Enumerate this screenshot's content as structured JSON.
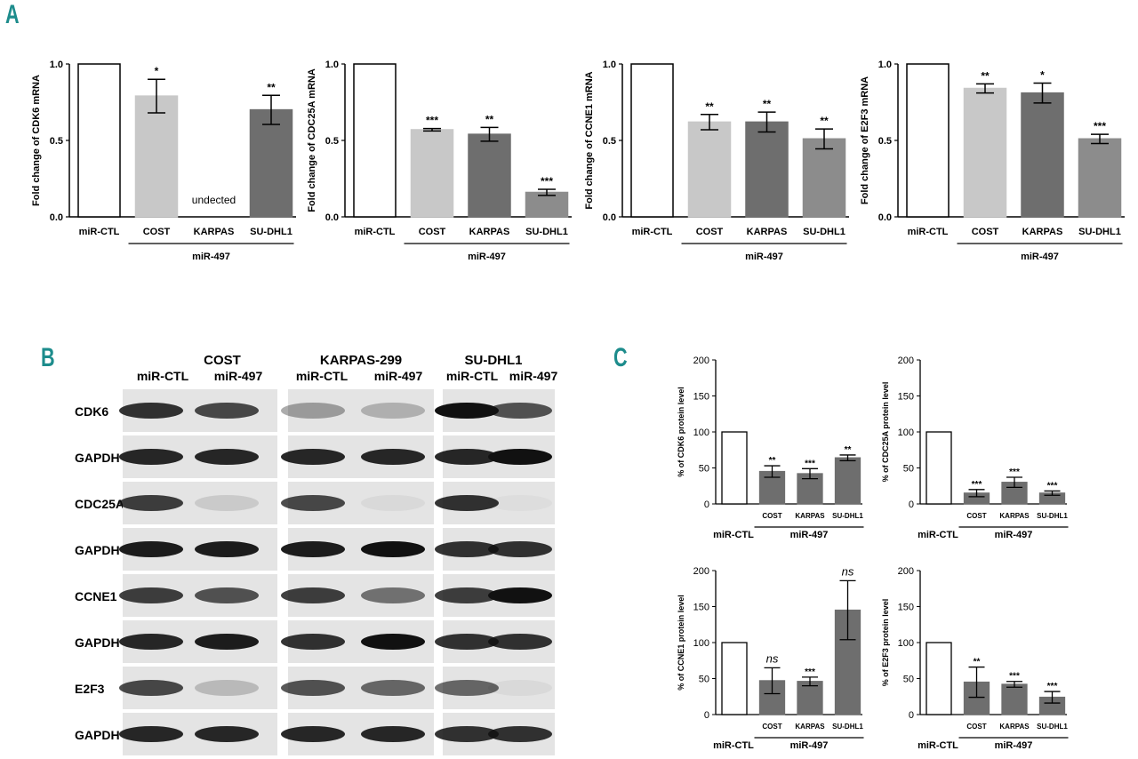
{
  "panels": {
    "a": "A",
    "b": "B",
    "c": "C"
  },
  "colors": {
    "white": "#ffffff",
    "light": "#c8c8c8",
    "dark": "#6e6e6e",
    "mid": "#8c8c8c",
    "c_bar": "#6e6e6e"
  },
  "panel_a": [
    {
      "ylabel": "Fold change of CDK6 mRNA",
      "group_label": "miR-497",
      "note": "undected",
      "ticks": [
        "0.0",
        "0.5",
        "1.0"
      ],
      "chart_data": {
        "type": "bar",
        "categories": [
          "miR-CTL",
          "COST",
          "KARPAS",
          "SU-DHL1"
        ],
        "values": [
          1.0,
          0.79,
          null,
          0.7
        ],
        "errors": [
          0,
          0.11,
          0,
          0.095
        ],
        "sig": [
          "",
          "*",
          "",
          "**"
        ],
        "ylim": [
          0,
          1.0
        ],
        "fills": [
          "white",
          "light",
          "none",
          "dark"
        ]
      }
    },
    {
      "ylabel": "Fold change of CDC25A mRNA",
      "group_label": "miR-497",
      "note": "",
      "ticks": [
        "0.0",
        "0.5",
        "1.0"
      ],
      "chart_data": {
        "type": "bar",
        "categories": [
          "miR-CTL",
          "COST",
          "KARPAS",
          "SU-DHL1"
        ],
        "values": [
          1.0,
          0.57,
          0.54,
          0.16
        ],
        "errors": [
          0,
          0.008,
          0.045,
          0.02
        ],
        "sig": [
          "",
          "***",
          "**",
          "***"
        ],
        "ylim": [
          0,
          1.0
        ],
        "fills": [
          "white",
          "light",
          "dark",
          "mid"
        ]
      }
    },
    {
      "ylabel": "Fold change of CCNE1 mRNA",
      "group_label": "miR-497",
      "note": "",
      "ticks": [
        "0.0",
        "0.5",
        "1.0"
      ],
      "chart_data": {
        "type": "bar",
        "categories": [
          "miR-CTL",
          "COST",
          "KARPAS",
          "SU-DHL1"
        ],
        "values": [
          1.0,
          0.62,
          0.62,
          0.51
        ],
        "errors": [
          0,
          0.05,
          0.065,
          0.065
        ],
        "sig": [
          "",
          "**",
          "**",
          "**"
        ],
        "ylim": [
          0,
          1.0
        ],
        "fills": [
          "white",
          "light",
          "dark",
          "mid"
        ]
      }
    },
    {
      "ylabel": "Fold change of E2F3 mRNA",
      "group_label": "miR-497",
      "note": "",
      "ticks": [
        "0.0",
        "0.5",
        "1.0"
      ],
      "chart_data": {
        "type": "bar",
        "categories": [
          "miR-CTL",
          "COST",
          "KARPAS",
          "SU-DHL1"
        ],
        "values": [
          1.0,
          0.84,
          0.81,
          0.51
        ],
        "errors": [
          0,
          0.03,
          0.065,
          0.03
        ],
        "sig": [
          "",
          "**",
          "*",
          "***"
        ],
        "ylim": [
          0,
          1.0
        ],
        "fills": [
          "white",
          "light",
          "dark",
          "mid"
        ]
      }
    }
  ],
  "panel_b": {
    "cell_lines": [
      "COST",
      "KARPAS-299",
      "SU-DHL1"
    ],
    "lane_labels": [
      "miR-CTL",
      "miR-497"
    ],
    "proteins": [
      "CDK6",
      "GAPDH",
      "CDC25A",
      "GAPDH",
      "CCNE1",
      "GAPDH",
      "E2F3",
      "GAPDH"
    ]
  },
  "panel_c": [
    {
      "ylabel": "% of CDK6 protein level",
      "group_label": "miR-497",
      "ctl_label": "miR-CTL",
      "ticks": [
        "0",
        "50",
        "100",
        "150",
        "200"
      ],
      "chart_data": {
        "type": "bar",
        "categories": [
          "miR-CTL",
          "COST",
          "KARPAS",
          "SU-DHL1"
        ],
        "values": [
          100,
          45,
          42,
          64
        ],
        "errors": [
          0,
          8,
          7,
          4
        ],
        "sig": [
          "",
          "**",
          "***",
          "**"
        ],
        "ylim": [
          0,
          200
        ]
      }
    },
    {
      "ylabel": "% of CDC25A protein level",
      "group_label": "miR-497",
      "ctl_label": "miR-CTL",
      "ticks": [
        "0",
        "50",
        "100",
        "150",
        "200"
      ],
      "chart_data": {
        "type": "bar",
        "categories": [
          "miR-CTL",
          "COST",
          "KARPAS",
          "SU-DHL1"
        ],
        "values": [
          100,
          15,
          30,
          15
        ],
        "errors": [
          0,
          5,
          7,
          3
        ],
        "sig": [
          "",
          "***",
          "***",
          "***"
        ],
        "ylim": [
          0,
          200
        ]
      }
    },
    {
      "ylabel": "% of CCNE1 protein level",
      "group_label": "miR-497",
      "ctl_label": "miR-CTL",
      "ticks": [
        "0",
        "50",
        "100",
        "150",
        "200"
      ],
      "chart_data": {
        "type": "bar",
        "categories": [
          "miR-CTL",
          "COST",
          "KARPAS",
          "SU-DHL1"
        ],
        "values": [
          100,
          47,
          46,
          145
        ],
        "errors": [
          0,
          18,
          6,
          41
        ],
        "sig": [
          "",
          "ns",
          "***",
          "ns"
        ],
        "ylim": [
          0,
          200
        ]
      }
    },
    {
      "ylabel": "% of E2F3 protein level",
      "group_label": "miR-497",
      "ctl_label": "miR-CTL",
      "ticks": [
        "0",
        "50",
        "100",
        "150",
        "200"
      ],
      "chart_data": {
        "type": "bar",
        "categories": [
          "miR-CTL",
          "COST",
          "KARPAS",
          "SU-DHL1"
        ],
        "values": [
          100,
          45,
          42,
          24
        ],
        "errors": [
          0,
          21,
          4,
          8
        ],
        "sig": [
          "",
          "**",
          "***",
          "***"
        ],
        "ylim": [
          0,
          200
        ]
      }
    }
  ]
}
